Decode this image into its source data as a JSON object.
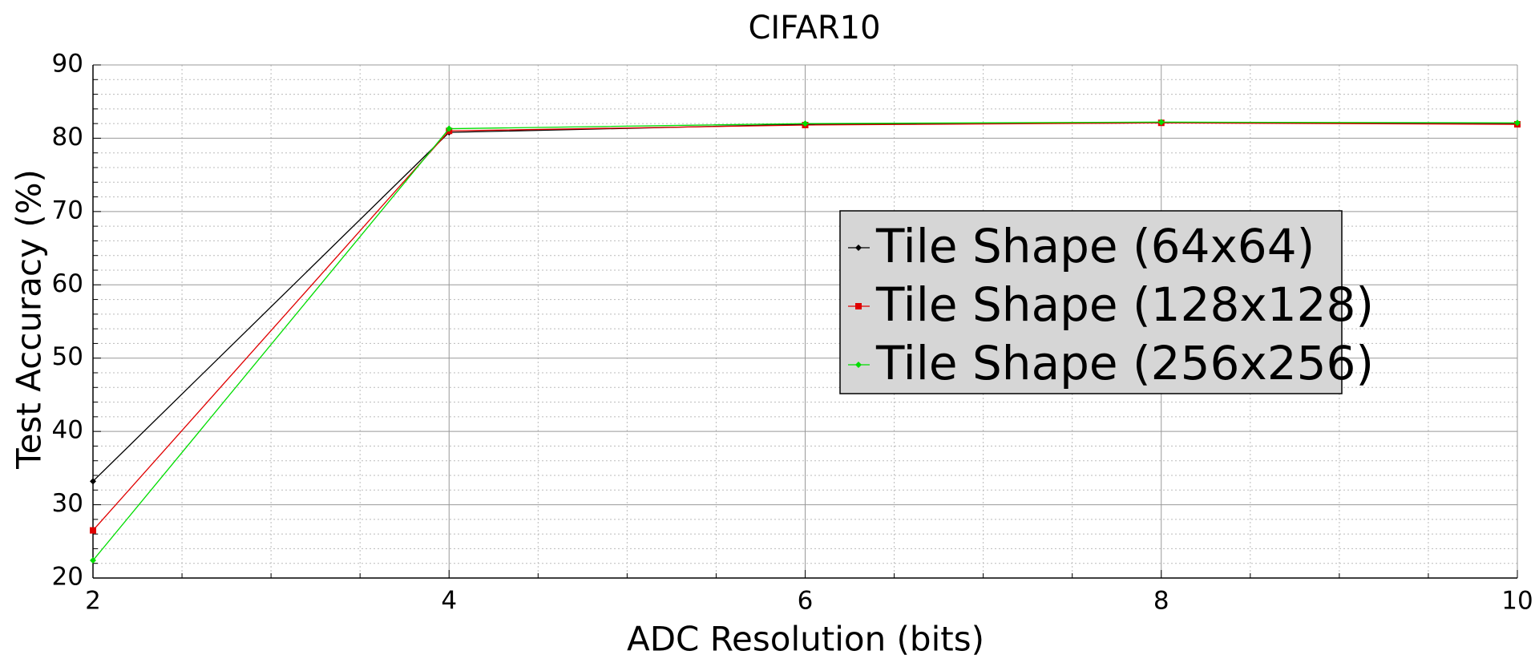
{
  "chart_data": {
    "type": "line",
    "title": "CIFAR10",
    "x_label": "ADC Resolution (bits)",
    "y_label": "Test Accuracy (%)",
    "x": [
      2,
      4,
      6,
      8,
      10
    ],
    "series": [
      {
        "name": "Tile Shape (64x64)",
        "color": "#000000",
        "marker": "diamond",
        "values": [
          33.2,
          80.8,
          81.9,
          82.1,
          82.0
        ]
      },
      {
        "name": "Tile Shape (128x128)",
        "color": "#e00000",
        "marker": "square",
        "values": [
          26.5,
          81.0,
          81.8,
          82.1,
          81.9
        ]
      },
      {
        "name": "Tile Shape (256x256)",
        "color": "#00dd00",
        "marker": "diamond",
        "values": [
          22.4,
          81.3,
          82.0,
          82.2,
          82.1
        ]
      }
    ],
    "xlim": [
      2,
      10
    ],
    "ylim": [
      20,
      90
    ],
    "xticks": [
      2,
      4,
      6,
      8,
      10
    ],
    "yticks": [
      20,
      30,
      40,
      50,
      60,
      70,
      80,
      90
    ],
    "x_minor_ticks": [
      2.5,
      3,
      3.5,
      4.5,
      5,
      5.5,
      6.5,
      7,
      7.5,
      8.5,
      9,
      9.5
    ],
    "y_minor_ticks": [
      22,
      24,
      26,
      28,
      32,
      34,
      36,
      38,
      42,
      44,
      46,
      48,
      52,
      54,
      56,
      58,
      62,
      64,
      66,
      68,
      72,
      74,
      76,
      78,
      82,
      84,
      86,
      88
    ],
    "grid": true,
    "legend": "right"
  }
}
